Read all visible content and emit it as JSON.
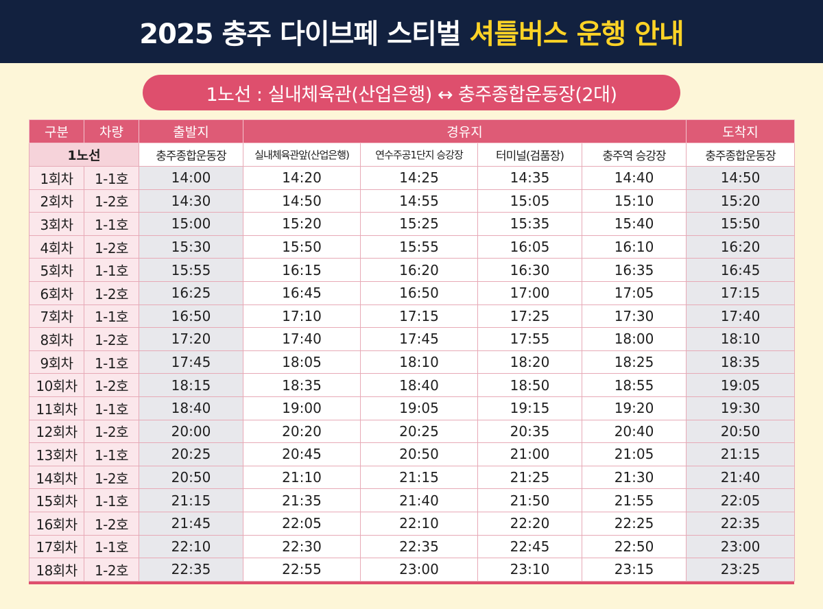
{
  "header": {
    "title_main": "2025 충주 다이브페 스티벌 ",
    "title_highlight": "셔틀버스 운행 안내"
  },
  "route": {
    "label": "1노선 : 실내체육관(산업은행) ↔ 충주종합운동장(2대)"
  },
  "table": {
    "h_division": "구분",
    "h_vehicle": "차량",
    "h_departure": "출발지",
    "h_via": "경유지",
    "h_arrival": "도착지",
    "line_label": "1노선",
    "stops": [
      "충주종합운동장",
      "실내체육관앞(산업은행)",
      "연수주공1단지 승강장",
      "터미널(검품장)",
      "충주역 승강장",
      "충주종합운동장"
    ],
    "rows": [
      [
        "1회차",
        "1-1호",
        "14:00",
        "14:20",
        "14:25",
        "14:35",
        "14:40",
        "14:50"
      ],
      [
        "2회차",
        "1-2호",
        "14:30",
        "14:50",
        "14:55",
        "15:05",
        "15:10",
        "15:20"
      ],
      [
        "3회차",
        "1-1호",
        "15:00",
        "15:20",
        "15:25",
        "15:35",
        "15:40",
        "15:50"
      ],
      [
        "4회차",
        "1-2호",
        "15:30",
        "15:50",
        "15:55",
        "16:05",
        "16:10",
        "16:20"
      ],
      [
        "5회차",
        "1-1호",
        "15:55",
        "16:15",
        "16:20",
        "16:30",
        "16:35",
        "16:45"
      ],
      [
        "6회차",
        "1-2호",
        "16:25",
        "16:45",
        "16:50",
        "17:00",
        "17:05",
        "17:15"
      ],
      [
        "7회차",
        "1-1호",
        "16:50",
        "17:10",
        "17:15",
        "17:25",
        "17:30",
        "17:40"
      ],
      [
        "8회차",
        "1-2호",
        "17:20",
        "17:40",
        "17:45",
        "17:55",
        "18:00",
        "18:10"
      ],
      [
        "9회차",
        "1-1호",
        "17:45",
        "18:05",
        "18:10",
        "18:20",
        "18:25",
        "18:35"
      ],
      [
        "10회차",
        "1-2호",
        "18:15",
        "18:35",
        "18:40",
        "18:50",
        "18:55",
        "19:05"
      ],
      [
        "11회차",
        "1-1호",
        "18:40",
        "19:00",
        "19:05",
        "19:15",
        "19:20",
        "19:30"
      ],
      [
        "12회차",
        "1-2호",
        "20:00",
        "20:20",
        "20:25",
        "20:35",
        "20:40",
        "20:50"
      ],
      [
        "13회차",
        "1-1호",
        "20:25",
        "20:45",
        "20:50",
        "21:00",
        "21:05",
        "21:15"
      ],
      [
        "14회차",
        "1-2호",
        "20:50",
        "21:10",
        "21:15",
        "21:25",
        "21:30",
        "21:40"
      ],
      [
        "15회차",
        "1-1호",
        "21:15",
        "21:35",
        "21:40",
        "21:50",
        "21:55",
        "22:05"
      ],
      [
        "16회차",
        "1-2호",
        "21:45",
        "22:05",
        "22:10",
        "22:20",
        "22:25",
        "22:35"
      ],
      [
        "17회차",
        "1-1호",
        "22:10",
        "22:30",
        "22:35",
        "22:45",
        "22:50",
        "23:00"
      ],
      [
        "18회차",
        "1-2호",
        "22:35",
        "22:55",
        "23:00",
        "23:10",
        "23:15",
        "23:25"
      ]
    ]
  },
  "colors": {
    "header_bg": "#12213f",
    "highlight": "#ffd326",
    "accent": "#de4f6d",
    "page_bg": "#fdf6d8"
  }
}
